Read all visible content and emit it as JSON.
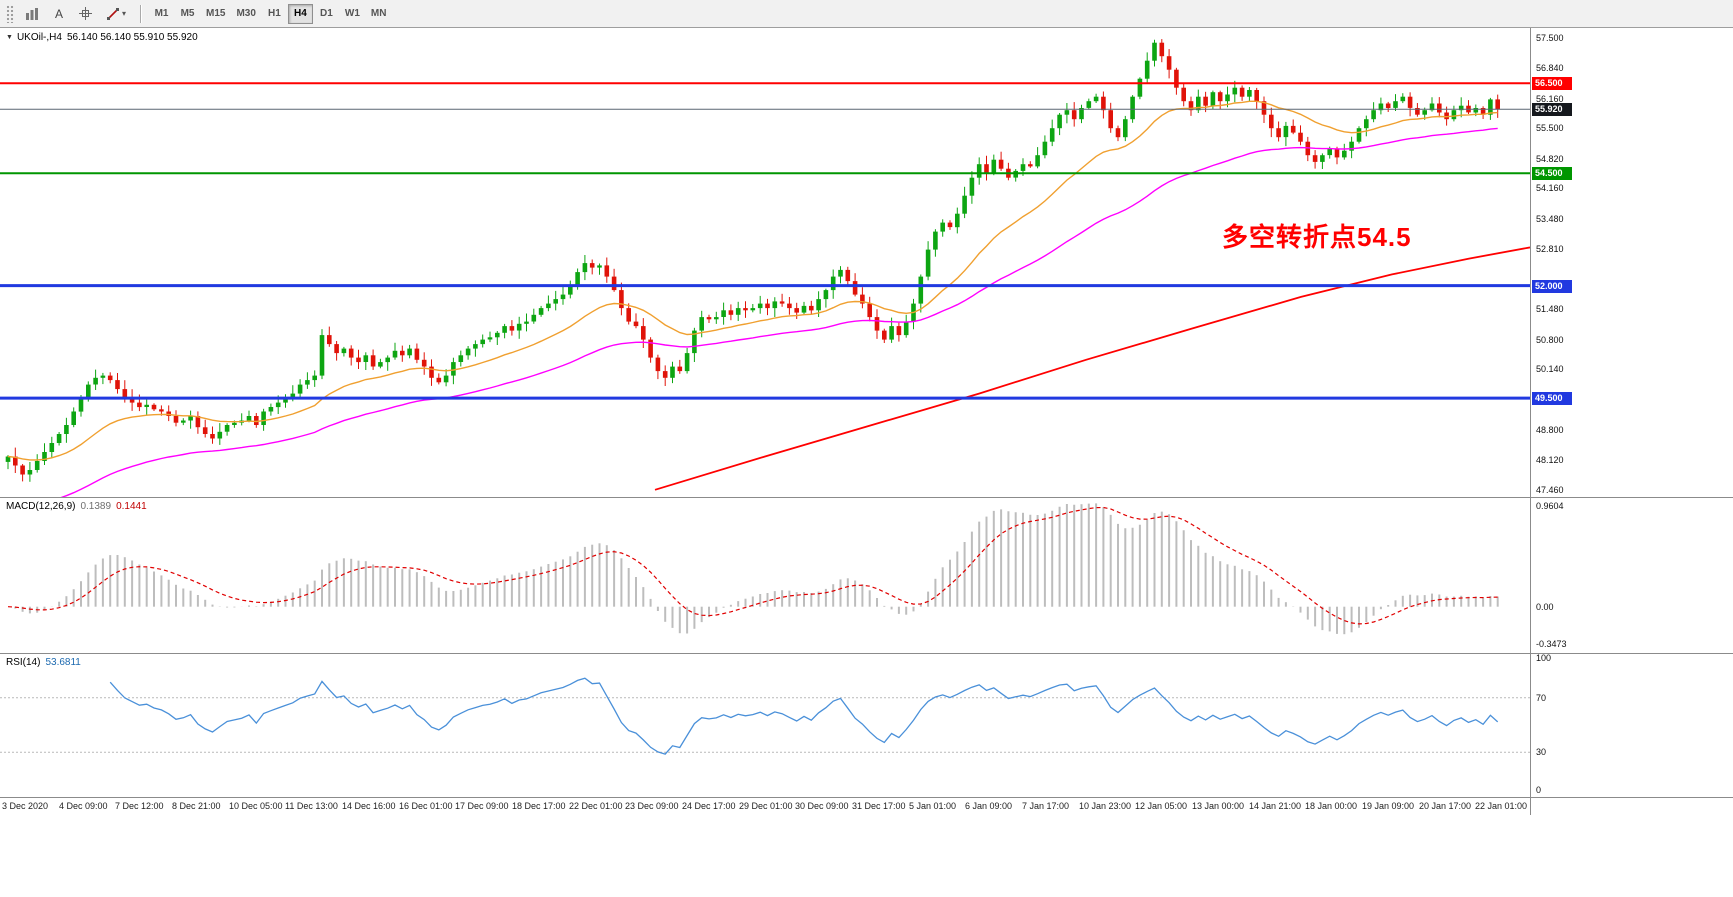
{
  "toolbar": {
    "cursor_label": "A",
    "timeframes": [
      "M1",
      "M5",
      "M15",
      "M30",
      "H1",
      "H4",
      "D1",
      "W1",
      "MN"
    ],
    "active_timeframe": "H4",
    "icons": {
      "charts": "charts-grid-icon",
      "crosshair": "crosshair-icon",
      "line_tools": "line-tools-icon",
      "caret": "▾"
    }
  },
  "main_panel": {
    "symbol_marker": "▼",
    "symbol_title": "UKOil-,H4",
    "ohlc": "56.140 56.140 55.910 55.920"
  },
  "macd_panel": {
    "label": "MACD(12,26,9)",
    "value_main": "0.1389",
    "value_signal": "0.1441",
    "axis_max": "0.9604",
    "axis_zero": "0.00",
    "axis_min": "-0.3473"
  },
  "rsi_panel": {
    "label": "RSI(14)",
    "value": "53.6811",
    "axis_top": "100",
    "axis_upper": "70",
    "axis_lower": "30",
    "axis_bottom": "0"
  },
  "annotation": {
    "text": "多空转折点54.5",
    "color": "#ff0000"
  },
  "price_axis": {
    "ticks": [
      {
        "label": "57.500",
        "price": 57.5
      },
      {
        "label": "56.840",
        "price": 56.84
      },
      {
        "label": "56.160",
        "price": 56.16
      },
      {
        "label": "55.500",
        "price": 55.5
      },
      {
        "label": "54.820",
        "price": 54.82
      },
      {
        "label": "54.160",
        "price": 54.16
      },
      {
        "label": "53.480",
        "price": 53.48
      },
      {
        "label": "52.810",
        "price": 52.81
      },
      {
        "label": "51.480",
        "price": 51.48
      },
      {
        "label": "50.800",
        "price": 50.8
      },
      {
        "label": "50.140",
        "price": 50.14
      },
      {
        "label": "48.800",
        "price": 48.8
      },
      {
        "label": "48.120",
        "price": 48.12
      },
      {
        "label": "47.460",
        "price": 47.46
      }
    ],
    "badges": [
      {
        "label": "56.500",
        "price": 56.5,
        "color": "#ff0000"
      },
      {
        "label": "55.920",
        "price": 55.92,
        "color": "#15181d"
      },
      {
        "label": "54.500",
        "price": 54.5,
        "color": "#009600"
      },
      {
        "label": "52.000",
        "price": 52.0,
        "color": "#2139e0"
      },
      {
        "label": "49.500",
        "price": 49.5,
        "color": "#2139e0"
      }
    ]
  },
  "chart_data": {
    "type": "candlestick",
    "symbol": "UKOil-",
    "timeframe": "H4",
    "current_ohlc": {
      "open": 56.14,
      "high": 56.14,
      "low": 55.91,
      "close": 55.92
    },
    "ylim": [
      47.3,
      57.75
    ],
    "closes": [
      48.2,
      48.0,
      47.8,
      47.9,
      48.1,
      48.3,
      48.5,
      48.7,
      48.9,
      49.2,
      49.5,
      49.8,
      49.95,
      50.0,
      49.9,
      49.7,
      49.5,
      49.4,
      49.3,
      49.35,
      49.25,
      49.2,
      49.1,
      48.95,
      49.0,
      49.1,
      48.85,
      48.7,
      48.6,
      48.75,
      48.9,
      48.95,
      49.0,
      49.1,
      48.9,
      49.2,
      49.3,
      49.4,
      49.5,
      49.6,
      49.8,
      49.9,
      50.0,
      50.9,
      50.7,
      50.5,
      50.6,
      50.4,
      50.3,
      50.45,
      50.2,
      50.3,
      50.4,
      50.55,
      50.45,
      50.6,
      50.35,
      50.2,
      49.95,
      49.85,
      50.0,
      50.3,
      50.45,
      50.6,
      50.7,
      50.8,
      50.85,
      50.95,
      51.1,
      51.0,
      51.15,
      51.2,
      51.35,
      51.5,
      51.6,
      51.7,
      51.8,
      52.0,
      52.3,
      52.5,
      52.4,
      52.45,
      52.2,
      51.9,
      51.5,
      51.2,
      51.1,
      50.8,
      50.4,
      50.1,
      49.95,
      50.2,
      50.1,
      50.5,
      51.0,
      51.3,
      51.25,
      51.3,
      51.45,
      51.35,
      51.5,
      51.45,
      51.5,
      51.6,
      51.5,
      51.65,
      51.6,
      51.5,
      51.4,
      51.55,
      51.45,
      51.7,
      51.9,
      52.2,
      52.35,
      52.1,
      51.8,
      51.6,
      51.3,
      51.0,
      50.8,
      51.1,
      50.9,
      51.2,
      51.6,
      52.2,
      52.8,
      53.2,
      53.4,
      53.3,
      53.6,
      54.0,
      54.4,
      54.7,
      54.5,
      54.8,
      54.6,
      54.4,
      54.55,
      54.7,
      54.65,
      54.9,
      55.2,
      55.5,
      55.8,
      55.9,
      55.7,
      55.95,
      56.1,
      56.2,
      55.9,
      55.5,
      55.3,
      55.7,
      56.2,
      56.6,
      57.0,
      57.4,
      57.1,
      56.8,
      56.4,
      56.1,
      55.9,
      56.2,
      56.0,
      56.3,
      56.1,
      56.25,
      56.4,
      56.2,
      56.35,
      56.1,
      55.8,
      55.5,
      55.3,
      55.55,
      55.4,
      55.2,
      54.9,
      54.75,
      54.9,
      55.05,
      54.85,
      55.0,
      55.2,
      55.5,
      55.7,
      55.9,
      56.05,
      55.95,
      56.1,
      56.2,
      55.95,
      55.8,
      55.9,
      56.05,
      55.85,
      55.7,
      55.9,
      56.0,
      55.85,
      55.95,
      55.8,
      56.14,
      55.92
    ],
    "time_labels": [
      "3 Dec 2020",
      "4 Dec 09:00",
      "7 Dec 12:00",
      "8 Dec 21:00",
      "10 Dec 05:00",
      "11 Dec 13:00",
      "14 Dec 16:00",
      "16 Dec 01:00",
      "17 Dec 09:00",
      "18 Dec 17:00",
      "22 Dec 01:00",
      "23 Dec 09:00",
      "24 Dec 17:00",
      "29 Dec 01:00",
      "30 Dec 09:00",
      "31 Dec 17:00",
      "5 Jan 01:00",
      "6 Jan 09:00",
      "7 Jan 17:00",
      "10 Jan 23:00",
      "12 Jan 05:00",
      "13 Jan 00:00",
      "14 Jan 21:00",
      "18 Jan 00:00",
      "19 Jan 09:00",
      "20 Jan 17:00",
      "22 Jan 01:00"
    ],
    "levels": [
      {
        "price": 56.5,
        "color": "#ff0000",
        "width": 2
      },
      {
        "price": 54.5,
        "color": "#009600",
        "width": 2
      },
      {
        "price": 52.0,
        "color": "#2139e0",
        "width": 3
      },
      {
        "price": 49.5,
        "color": "#2139e0",
        "width": 3
      },
      {
        "price": 55.92,
        "color": "#5a6672",
        "width": 1
      }
    ],
    "slow_ma_path": [
      [
        0.428,
        47.46
      ],
      [
        0.5,
        48.2
      ],
      [
        0.57,
        48.9
      ],
      [
        0.64,
        49.6
      ],
      [
        0.71,
        50.35
      ],
      [
        0.78,
        51.05
      ],
      [
        0.85,
        51.75
      ],
      [
        0.91,
        52.25
      ],
      [
        0.96,
        52.6
      ],
      [
        1.0,
        52.85
      ]
    ],
    "indicators": {
      "macd": {
        "fast": 12,
        "slow": 26,
        "signal": 9
      },
      "rsi": {
        "period": 14,
        "levels": [
          70,
          30
        ]
      },
      "ma_fast_period": 21,
      "ma_mid_period": 55
    },
    "colors": {
      "up": "#0da512",
      "down": "#e01309",
      "ma_fast": "#f0a030",
      "ma_mid": "#ff00ff",
      "ma_slow": "#ff0000",
      "macd_hist": "#bdbdbd",
      "macd_signal": "#e00000",
      "rsi": "#4a90d9"
    }
  }
}
